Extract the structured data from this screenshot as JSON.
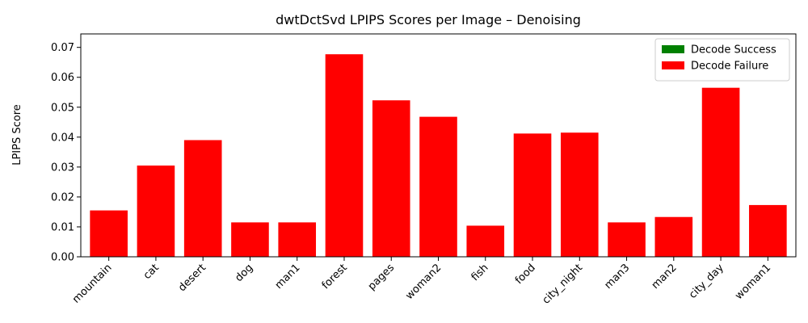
{
  "chart_data": {
    "type": "bar",
    "title": "dwtDctSvd LPIPS Scores per Image – Denoising",
    "xlabel": "",
    "ylabel": "LPIPS Score",
    "ylim": [
      0,
      0.0745
    ],
    "yticks": [
      "0.00",
      "0.01",
      "0.02",
      "0.03",
      "0.04",
      "0.05",
      "0.06",
      "0.07"
    ],
    "ytick_values": [
      0,
      0.01,
      0.02,
      0.03,
      0.04,
      0.05,
      0.06,
      0.07
    ],
    "categories": [
      "mountain",
      "cat",
      "desert",
      "dog",
      "man1",
      "forest",
      "pages",
      "woman2",
      "fish",
      "food",
      "city_night",
      "man3",
      "man2",
      "city_day",
      "woman1"
    ],
    "values": [
      0.0155,
      0.0305,
      0.039,
      0.0115,
      0.0115,
      0.0677,
      0.0523,
      0.0468,
      0.0104,
      0.0412,
      0.0415,
      0.0115,
      0.0133,
      0.0565,
      0.0173
    ],
    "decode_success": [
      false,
      false,
      false,
      false,
      false,
      false,
      false,
      false,
      false,
      false,
      false,
      false,
      false,
      false,
      false
    ],
    "legend": {
      "placement": "top-right",
      "entries": [
        {
          "label": "Decode Success",
          "color": "#008000"
        },
        {
          "label": "Decode Failure",
          "color": "#ff0000"
        }
      ]
    },
    "colors": {
      "success": "#008000",
      "failure": "#ff0000"
    },
    "grid": false
  }
}
